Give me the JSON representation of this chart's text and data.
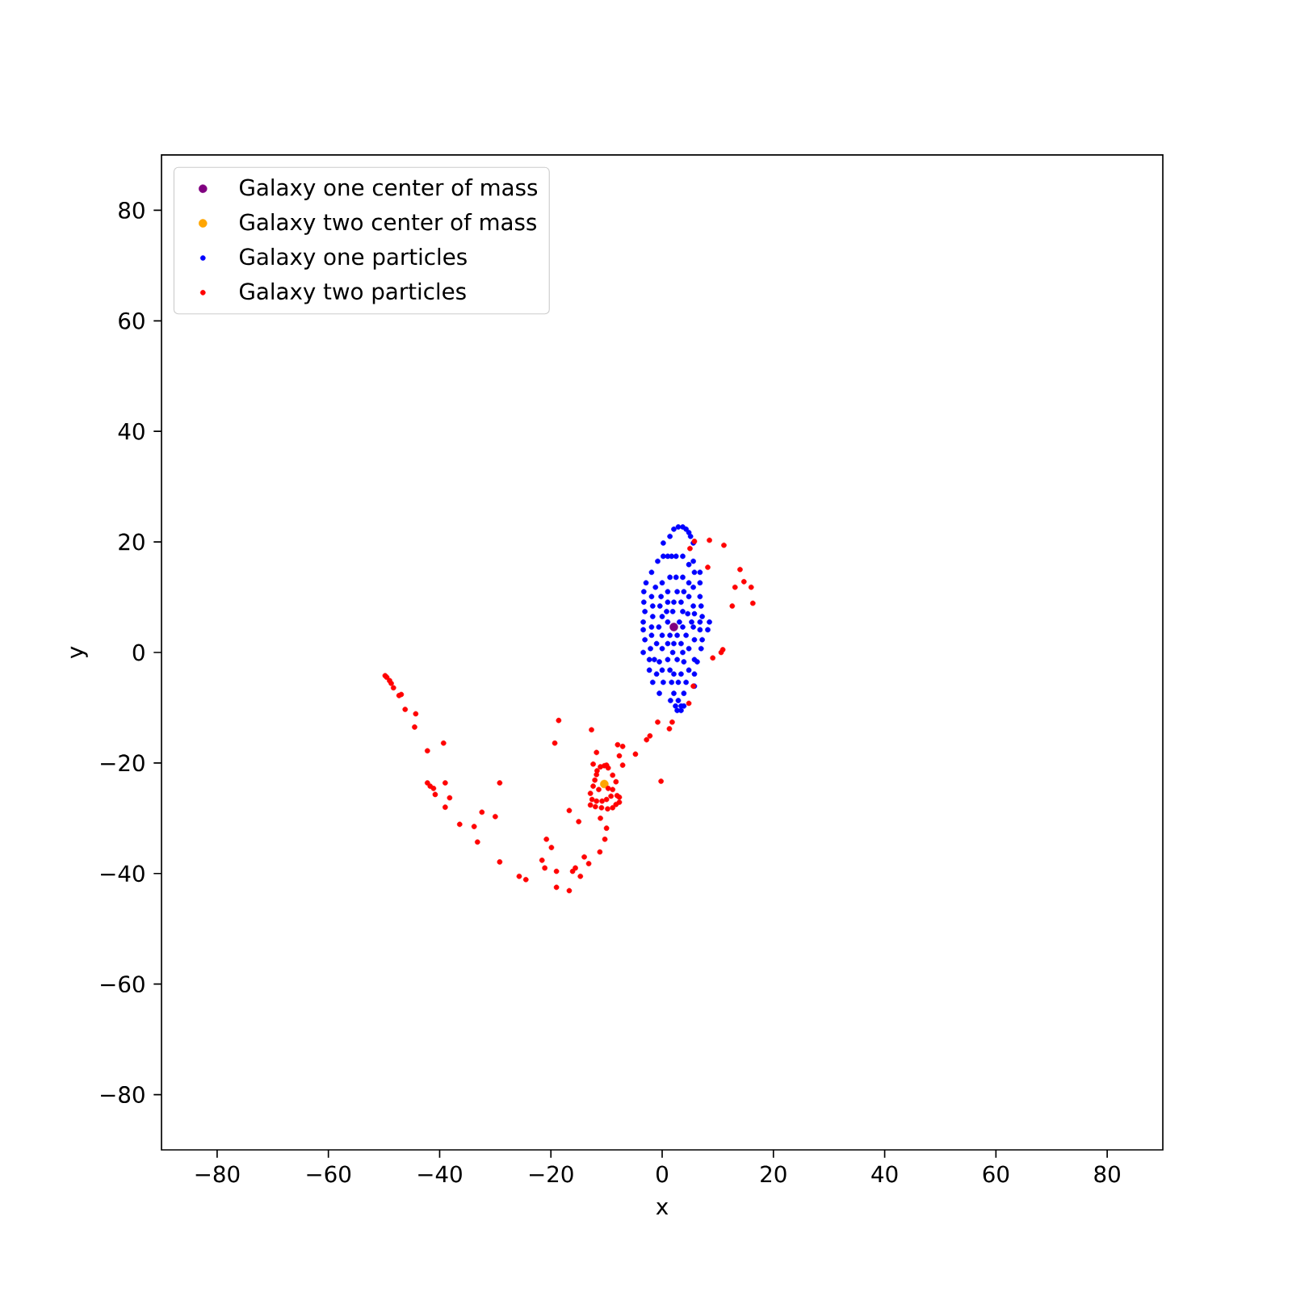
{
  "chart_data": {
    "type": "scatter",
    "xlabel": "x",
    "ylabel": "y",
    "xlim": [
      -90,
      90
    ],
    "ylim": [
      -90,
      90
    ],
    "xticks": [
      {
        "value": -80,
        "label": "−80"
      },
      {
        "value": -60,
        "label": "−60"
      },
      {
        "value": -40,
        "label": "−40"
      },
      {
        "value": -20,
        "label": "−20"
      },
      0,
      20,
      40,
      60,
      80
    ],
    "yticks": [
      {
        "value": -80,
        "label": "−80"
      },
      {
        "value": -60,
        "label": "−60"
      },
      {
        "value": -40,
        "label": "−40"
      },
      {
        "value": -20,
        "label": "−20"
      },
      0,
      20,
      40,
      60,
      80
    ],
    "legend": "top left",
    "marker": "circle",
    "series": [
      {
        "name": "Galaxy one center of mass",
        "color": "#800080",
        "x": [
          2.1
        ],
        "values": [
          4.6
        ]
      },
      {
        "name": "Galaxy two center of mass",
        "color": "#ffa500",
        "x": [
          -10.4
        ],
        "values": [
          -23.8
        ]
      },
      {
        "name": "Galaxy one particles",
        "color": "#0000ff",
        "x": [
          2.9,
          3.7,
          2.1,
          4.3,
          4.8,
          1.4,
          5.1,
          0.2,
          5.6,
          0.2,
          1.0,
          1.7,
          2.5,
          3.7,
          -0.8,
          5.6,
          4.8,
          -1.9,
          5.8,
          6.8,
          1.4,
          2.5,
          3.7,
          -2.9,
          0,
          4.8,
          6.8,
          -1.2,
          5.6,
          -3.3,
          1.0,
          2.7,
          3.9,
          -1.9,
          -0.2,
          4.8,
          6.8,
          -3.3,
          1.0,
          2.1,
          3.4,
          -1.7,
          -0.4,
          5.6,
          7.0,
          -3.1,
          0.8,
          1.9,
          3.7,
          4.6,
          5.8,
          -1.7,
          0,
          7.2,
          -3.4,
          1.0,
          3.1,
          5.3,
          6.8,
          8.5,
          -1.9,
          -0.6,
          3.7,
          5.6,
          -3.4,
          6.8,
          8.2,
          -1.9,
          0,
          1.4,
          2.7,
          4.3,
          -3.1,
          5.8,
          7.2,
          -1.0,
          1.0,
          2.1,
          3.4,
          -2.1,
          0,
          4.8,
          7.0,
          -3.4,
          1.9,
          3.7,
          -2.3,
          -1.4,
          1.0,
          2.7,
          5.8,
          -0.5,
          3.9,
          6.3,
          -2.3,
          0,
          1.4,
          4.8,
          -1.0,
          2.1,
          3.4,
          5.8,
          -1.7,
          0.2,
          1.7,
          2.9,
          4.3,
          5.8,
          -0.5,
          2.1,
          3.9,
          1.5,
          2.9,
          2.4,
          3.4,
          3.9,
          2.7,
          3.4
        ],
        "values": [
          22.7,
          22.7,
          22.3,
          22.3,
          21.7,
          21.0,
          21.0,
          19.8,
          19.8,
          17.4,
          17.4,
          17.4,
          17.4,
          17.4,
          16.5,
          16.5,
          15.9,
          14.5,
          14.5,
          14.5,
          13.6,
          13.6,
          13.6,
          12.6,
          12.6,
          12.6,
          12.6,
          11.8,
          11.8,
          11.0,
          11.0,
          11.0,
          11.0,
          10.1,
          10.1,
          10.1,
          10.1,
          9.1,
          9.1,
          9.1,
          9.1,
          8.4,
          8.4,
          8.4,
          8.4,
          7.4,
          7.4,
          7.4,
          7.4,
          7.0,
          7.0,
          6.5,
          6.5,
          6.5,
          5.5,
          5.5,
          5.5,
          5.5,
          5.5,
          5.5,
          4.6,
          4.6,
          4.6,
          4.6,
          4.1,
          4.1,
          4.1,
          3.1,
          3.1,
          3.1,
          3.1,
          3.1,
          2.3,
          2.3,
          2.3,
          1.6,
          1.6,
          1.6,
          1.6,
          0.7,
          0.7,
          0.7,
          0.7,
          0,
          0,
          0,
          -1.3,
          -1.3,
          -1.3,
          -1.3,
          -1.3,
          -1.7,
          -1.7,
          -1.7,
          -3.2,
          -3.2,
          -3.2,
          -3.2,
          -3.9,
          -3.9,
          -3.9,
          -3.9,
          -5.4,
          -5.4,
          -5.4,
          -5.4,
          -5.4,
          -6.1,
          -7.4,
          -7.4,
          -7.4,
          -8.7,
          -8.7,
          -9.7,
          -9.7,
          -9.7,
          -10.5,
          -10.5
        ]
      },
      {
        "name": "Galaxy two particles",
        "color": "#ff0000",
        "x": [
          -49.8,
          -49.5,
          -49.0,
          -48.7,
          -48.3,
          -47.3,
          -46.9,
          -46.2,
          -44.3,
          -44.5,
          -42.2,
          -39.3,
          -42.2,
          -41.7,
          -41.1,
          -40.8,
          -39.0,
          -38.2,
          -39.0,
          -36.4,
          -33.8,
          -33.2,
          -29.2,
          -29.2,
          -32.4,
          -30.0,
          -25.7,
          -24.5,
          -20.8,
          -19.9,
          -21.6,
          -21.1,
          -19.0,
          -19.0,
          -16.7,
          -16.1,
          -15.6,
          -14.7,
          -14.0,
          -13.2,
          -16.7,
          -15.0,
          -18.6,
          -19.3,
          -12.7,
          -11.8,
          -11.1,
          -10.3,
          -10.0,
          -11.2,
          -8.0,
          -7.1,
          -7.7,
          -7.1,
          -4.8,
          -2.8,
          -2.2,
          -0.8,
          1.3,
          1.8,
          -0.2,
          -12.4,
          -11.7,
          -11.1,
          -10.4,
          -10.0,
          -9.7,
          -11.8,
          -8.9,
          -12.1,
          -8.3,
          -12.4,
          -8.9,
          -12.9,
          -8.1,
          -12.6,
          -11.8,
          -10.8,
          -10.0,
          -9.2,
          -7.7,
          -7.7,
          -8.3,
          -8.9,
          -9.8,
          -10.9,
          -12.0,
          -12.9,
          -11.4,
          -9.7,
          5.8,
          5.0,
          8.5,
          11.1,
          8.2,
          14.0,
          14.7,
          13.1,
          16.0,
          12.6,
          16.3,
          10.9,
          10.6,
          9.1,
          5.6,
          4.8
        ],
        "values": [
          -4.2,
          -4.5,
          -5.1,
          -5.6,
          -6.4,
          -7.8,
          -7.6,
          -10.3,
          -11.1,
          -13.5,
          -17.8,
          -16.4,
          -23.6,
          -24.2,
          -24.6,
          -25.7,
          -23.6,
          -26.3,
          -28.0,
          -31.1,
          -31.5,
          -34.3,
          -23.6,
          -37.9,
          -28.9,
          -29.7,
          -40.5,
          -41.1,
          -33.8,
          -35.3,
          -37.6,
          -39.0,
          -39.6,
          -42.5,
          -43.1,
          -39.6,
          -39.0,
          -40.5,
          -37.0,
          -38.2,
          -28.6,
          -30.6,
          -12.3,
          -16.4,
          -14.0,
          -18.1,
          -30.0,
          -33.8,
          -31.8,
          -36.1,
          -16.7,
          -17.0,
          -18.7,
          -20.4,
          -18.4,
          -15.8,
          -15.1,
          -12.6,
          -13.8,
          -12.6,
          -23.3,
          -20.2,
          -21.4,
          -20.7,
          -20.5,
          -20.4,
          -20.9,
          -22.1,
          -22.2,
          -23.1,
          -23.4,
          -24.2,
          -24.8,
          -25.5,
          -25.9,
          -26.6,
          -26.9,
          -26.9,
          -26.6,
          -26.0,
          -26.2,
          -27.1,
          -27.5,
          -28.1,
          -28.3,
          -28.1,
          -27.9,
          -27.6,
          -24.8,
          -24.6,
          20.1,
          18.8,
          20.3,
          19.4,
          15.4,
          15.0,
          12.8,
          11.8,
          11.8,
          8.4,
          8.9,
          0.5,
          0,
          -1.0,
          -6.1,
          -9.2
        ]
      }
    ]
  }
}
